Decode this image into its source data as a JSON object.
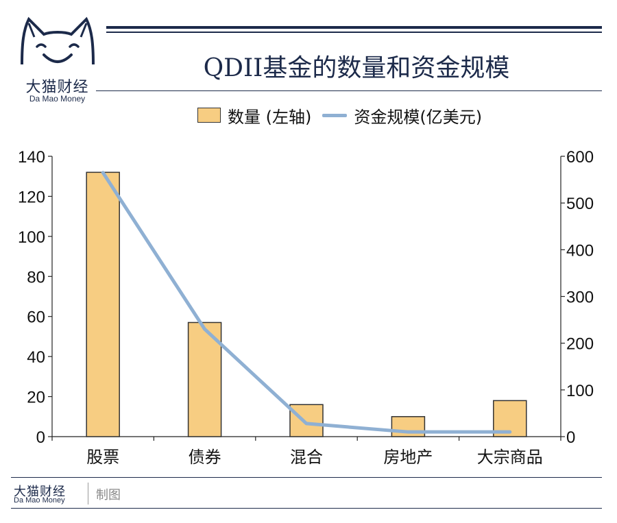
{
  "logo": {
    "name_cn": "大猫财经",
    "name_en": "Da Mao Money"
  },
  "header": {
    "title": "QDII基金的数量和资金规模"
  },
  "legend": {
    "bar_label": "数量 (左轴)",
    "line_label": "资金规模(亿美元)"
  },
  "colors": {
    "bar_fill": "#f7cd82",
    "bar_stroke": "#333333",
    "line": "#8fb0d3",
    "brand": "#1c2a4a"
  },
  "chart_data": {
    "type": "bar+line",
    "title": "QDII基金的数量和资金规模",
    "categories": [
      "股票",
      "债券",
      "混合",
      "房地产",
      "大宗商品"
    ],
    "series": [
      {
        "name": "数量 (左轴)",
        "type": "bar",
        "axis": "left",
        "values": [
          132,
          57,
          16,
          10,
          18
        ]
      },
      {
        "name": "资金规模(亿美元)",
        "type": "line",
        "axis": "right",
        "values": [
          565,
          230,
          28,
          10,
          10
        ]
      }
    ],
    "left_axis": {
      "min": 0,
      "max": 140,
      "ticks": [
        0,
        20,
        40,
        60,
        80,
        100,
        120,
        140
      ]
    },
    "right_axis": {
      "min": 0,
      "max": 600,
      "ticks": [
        0,
        100,
        200,
        300,
        400,
        500,
        600
      ]
    },
    "legend_position": "top-center"
  },
  "footer": {
    "brand_cn": "大猫财经",
    "brand_en": "Da Mao Money",
    "credit": "制图"
  }
}
